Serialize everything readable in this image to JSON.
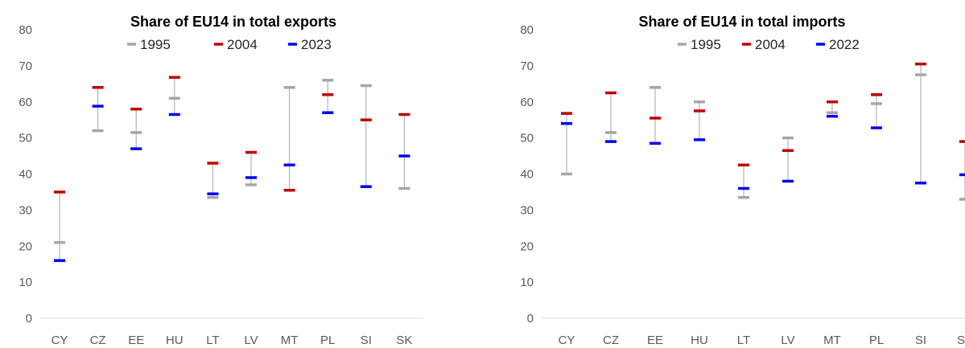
{
  "chart_data": [
    {
      "type": "range",
      "title": "Share of EU14 in total exports",
      "categories": [
        "CY",
        "CZ",
        "EE",
        "HU",
        "LT",
        "LV",
        "MT",
        "PL",
        "SI",
        "SK"
      ],
      "ylim": [
        0,
        80
      ],
      "yticks": [
        0,
        10,
        20,
        30,
        40,
        50,
        60,
        70,
        80
      ],
      "grid": false,
      "legend_position": "top",
      "series": [
        {
          "name": "1995",
          "color": "#a6a6a6",
          "values": [
            21,
            52,
            51.5,
            61,
            33.5,
            37,
            64,
            66,
            64.5,
            36
          ]
        },
        {
          "name": "2004",
          "color": "#c00000",
          "values": [
            35,
            64,
            58,
            66.8,
            43,
            46,
            35.5,
            62,
            55,
            56.5
          ]
        },
        {
          "name": "2023",
          "color": "#0000ff",
          "values": [
            16,
            58.8,
            47,
            56.5,
            34.5,
            39,
            42.5,
            57,
            36.5,
            45
          ]
        }
      ]
    },
    {
      "type": "range",
      "title": "Share of EU14 in total imports",
      "categories": [
        "CY",
        "CZ",
        "EE",
        "HU",
        "LT",
        "LV",
        "MT",
        "PL",
        "SI",
        "SK"
      ],
      "ylim": [
        0,
        80
      ],
      "yticks": [
        0,
        10,
        20,
        30,
        40,
        50,
        60,
        70,
        80
      ],
      "grid": false,
      "legend_position": "top",
      "series": [
        {
          "name": "1995",
          "color": "#a6a6a6",
          "values": [
            40,
            51.5,
            64,
            60,
            33.5,
            50,
            57,
            59.5,
            67.5,
            33
          ]
        },
        {
          "name": "2004",
          "color": "#c00000",
          "values": [
            56.8,
            62.5,
            55.5,
            57.5,
            42.5,
            46.5,
            60,
            62,
            70.5,
            49
          ]
        },
        {
          "name": "2022",
          "color": "#0000ff",
          "values": [
            54,
            49,
            48.5,
            49.5,
            36,
            38,
            56,
            52.8,
            37.5,
            39.8
          ]
        }
      ]
    }
  ]
}
